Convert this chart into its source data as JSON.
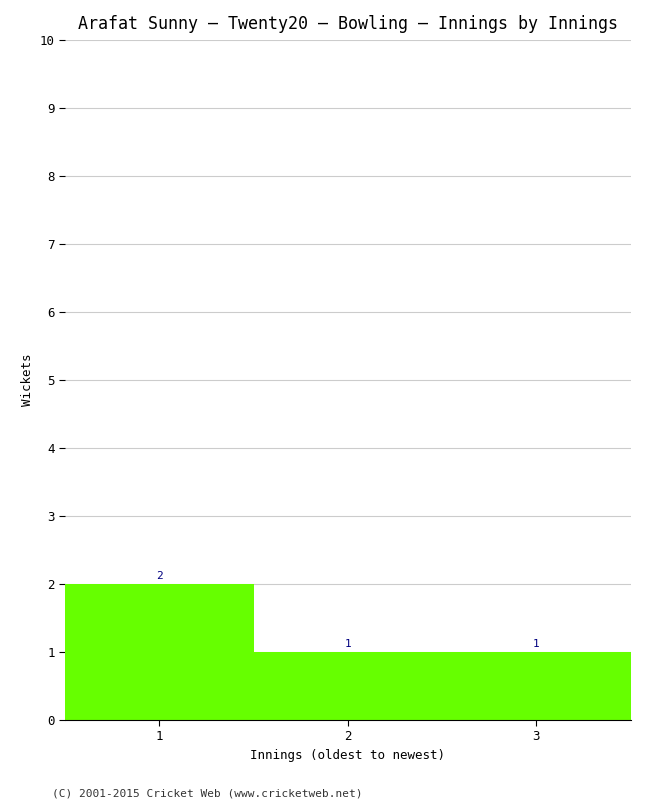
{
  "title": "Arafat Sunny – Twenty20 – Bowling – Innings by Innings",
  "xlabel": "Innings (oldest to newest)",
  "ylabel": "Wickets",
  "categories": [
    1,
    2,
    3
  ],
  "values": [
    2,
    1,
    1
  ],
  "bar_color": "#66ff00",
  "bar_edge_color": "#66ff00",
  "ylim": [
    0,
    10
  ],
  "yticks": [
    0,
    1,
    2,
    3,
    4,
    5,
    6,
    7,
    8,
    9,
    10
  ],
  "xticks": [
    1,
    2,
    3
  ],
  "xlim": [
    0.5,
    3.5
  ],
  "background_color": "#ffffff",
  "grid_color": "#cccccc",
  "annotation_color": "#000080",
  "annotation_fontsize": 8,
  "title_fontsize": 12,
  "label_fontsize": 9,
  "tick_fontsize": 9,
  "footer": "(C) 2001-2015 Cricket Web (www.cricketweb.net)",
  "footer_fontsize": 8,
  "bar_width": 1.0
}
